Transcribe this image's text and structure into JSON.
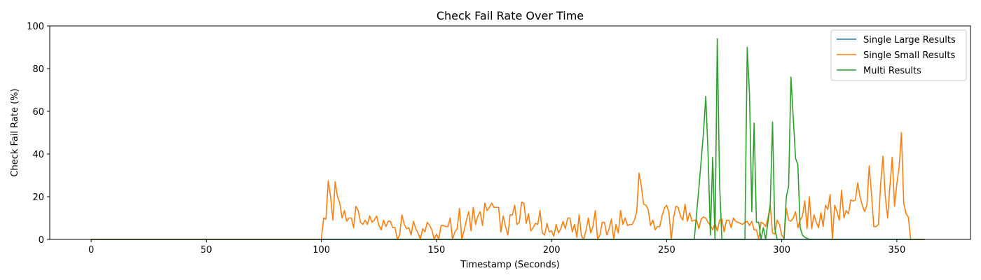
{
  "chart_data": {
    "type": "line",
    "title": "Check Fail Rate Over Time",
    "xlabel": "Timestamp (Seconds)",
    "ylabel": "Check Fail Rate (%)",
    "xlim": [
      -18,
      382
    ],
    "ylim": [
      0,
      100
    ],
    "xticks": [
      0,
      50,
      100,
      150,
      200,
      250,
      300,
      350
    ],
    "yticks": [
      0,
      20,
      40,
      60,
      80,
      100
    ],
    "grid": false,
    "legend_position": "top-right",
    "series": [
      {
        "name": "Single Large Results",
        "color": "#1f77b4",
        "points": [
          [
            0,
            0
          ],
          [
            362,
            0
          ]
        ]
      },
      {
        "name": "Single Small Results",
        "color": "#ff7f0e",
        "points": [
          [
            0,
            0
          ],
          [
            100,
            0
          ],
          [
            101,
            10
          ],
          [
            102,
            9.5
          ],
          [
            103,
            27.5
          ],
          [
            104,
            20
          ],
          [
            105,
            9
          ],
          [
            106,
            27
          ],
          [
            107,
            20
          ],
          [
            108,
            17
          ],
          [
            109,
            10
          ],
          [
            110,
            13.5
          ],
          [
            111,
            8.5
          ],
          [
            112,
            10
          ],
          [
            113,
            10
          ],
          [
            114,
            5.5
          ],
          [
            115,
            15.5
          ],
          [
            116,
            13.5
          ],
          [
            117,
            8
          ],
          [
            118,
            7
          ],
          [
            119,
            9
          ],
          [
            120,
            7
          ],
          [
            121,
            11
          ],
          [
            122,
            8
          ],
          [
            123,
            9
          ],
          [
            124,
            11
          ],
          [
            125,
            6.5
          ],
          [
            126,
            4.5
          ],
          [
            127,
            9
          ],
          [
            128,
            6
          ],
          [
            129,
            8.5
          ],
          [
            130,
            8.5
          ],
          [
            131,
            5.5
          ],
          [
            132,
            5.5
          ],
          [
            133,
            0
          ],
          [
            134,
            2
          ],
          [
            135,
            11.5
          ],
          [
            136,
            7
          ],
          [
            137,
            5
          ],
          [
            138,
            5.5
          ],
          [
            139,
            2
          ],
          [
            140,
            8.5
          ],
          [
            141,
            5
          ],
          [
            142,
            3
          ],
          [
            143,
            0
          ],
          [
            144,
            5
          ],
          [
            145,
            3.5
          ],
          [
            146,
            8
          ],
          [
            147,
            6.5
          ],
          [
            148,
            4.5
          ],
          [
            149,
            0
          ],
          [
            150,
            2.5
          ],
          [
            151,
            0
          ],
          [
            152,
            6.5
          ],
          [
            153,
            6.5
          ],
          [
            154,
            6
          ],
          [
            155,
            6
          ],
          [
            156,
            10
          ],
          [
            157,
            0
          ],
          [
            158,
            3.5
          ],
          [
            159,
            5
          ],
          [
            160,
            14.5
          ],
          [
            161,
            0
          ],
          [
            162,
            4
          ],
          [
            163,
            9
          ],
          [
            164,
            13
          ],
          [
            165,
            4
          ],
          [
            166,
            15
          ],
          [
            167,
            7
          ],
          [
            168,
            11
          ],
          [
            169,
            13
          ],
          [
            170,
            6.5
          ],
          [
            171,
            17
          ],
          [
            172,
            13.5
          ],
          [
            173,
            15
          ],
          [
            174,
            17
          ],
          [
            175,
            15
          ],
          [
            176,
            15
          ],
          [
            177,
            15
          ],
          [
            178,
            3.5
          ],
          [
            179,
            11
          ],
          [
            180,
            6
          ],
          [
            181,
            2
          ],
          [
            182,
            11.5
          ],
          [
            183,
            11.5
          ],
          [
            184,
            16
          ],
          [
            185,
            7
          ],
          [
            186,
            8
          ],
          [
            187,
            17.5
          ],
          [
            188,
            17
          ],
          [
            189,
            7.5
          ],
          [
            190,
            12
          ],
          [
            191,
            4
          ],
          [
            192,
            5.5
          ],
          [
            193,
            7.5
          ],
          [
            194,
            7
          ],
          [
            195,
            13.5
          ],
          [
            196,
            3
          ],
          [
            197,
            2
          ],
          [
            198,
            7.5
          ],
          [
            199,
            3.5
          ],
          [
            200,
            4
          ],
          [
            201,
            1.5
          ],
          [
            202,
            7
          ],
          [
            203,
            3
          ],
          [
            204,
            5
          ],
          [
            205,
            8.5
          ],
          [
            206,
            5
          ],
          [
            207,
            10
          ],
          [
            208,
            10
          ],
          [
            209,
            3.5
          ],
          [
            210,
            7
          ],
          [
            211,
            1
          ],
          [
            212,
            11.5
          ],
          [
            213,
            1.5
          ],
          [
            214,
            0
          ],
          [
            215,
            4.5
          ],
          [
            216,
            10
          ],
          [
            217,
            3
          ],
          [
            218,
            6
          ],
          [
            219,
            13.5
          ],
          [
            220,
            0
          ],
          [
            221,
            2
          ],
          [
            222,
            8
          ],
          [
            223,
            8
          ],
          [
            224,
            2
          ],
          [
            225,
            5
          ],
          [
            226,
            9.5
          ],
          [
            227,
            0
          ],
          [
            228,
            7
          ],
          [
            229,
            3
          ],
          [
            230,
            13.5
          ],
          [
            231,
            7
          ],
          [
            232,
            10
          ],
          [
            233,
            6.5
          ],
          [
            234,
            7
          ],
          [
            235,
            7
          ],
          [
            236,
            9
          ],
          [
            237,
            13
          ],
          [
            238,
            31
          ],
          [
            239,
            25
          ],
          [
            240,
            16.5
          ],
          [
            241,
            16
          ],
          [
            242,
            14
          ],
          [
            243,
            6.5
          ],
          [
            244,
            9
          ],
          [
            245,
            4.5
          ],
          [
            246,
            6
          ],
          [
            247,
            6
          ],
          [
            248,
            11
          ],
          [
            249,
            14.5
          ],
          [
            250,
            16
          ],
          [
            251,
            12.5
          ],
          [
            252,
            0
          ],
          [
            253,
            10
          ],
          [
            254,
            15.5
          ],
          [
            255,
            15
          ],
          [
            256,
            11
          ],
          [
            257,
            9
          ],
          [
            258,
            16.5
          ],
          [
            259,
            8.5
          ],
          [
            260,
            12.5
          ],
          [
            261,
            8.5
          ],
          [
            262,
            9
          ],
          [
            263,
            9
          ],
          [
            264,
            5
          ],
          [
            265,
            9.5
          ],
          [
            266,
            10.5
          ],
          [
            267,
            10
          ],
          [
            268,
            8
          ],
          [
            269,
            6.5
          ],
          [
            270,
            4.5
          ],
          [
            271,
            7.5
          ],
          [
            272,
            4
          ],
          [
            273,
            9
          ],
          [
            274,
            9.5
          ],
          [
            275,
            3.5
          ],
          [
            276,
            9
          ],
          [
            277,
            9
          ],
          [
            278,
            5.5
          ],
          [
            279,
            10
          ],
          [
            280,
            8.5
          ],
          [
            281,
            8
          ],
          [
            282,
            7.5
          ],
          [
            283,
            7
          ],
          [
            284,
            8
          ],
          [
            285,
            8.5
          ],
          [
            286,
            6.5
          ],
          [
            287,
            8.5
          ],
          [
            288,
            4.5
          ],
          [
            289,
            4.5
          ],
          [
            290,
            0
          ],
          [
            291,
            8
          ],
          [
            292,
            7.5
          ],
          [
            293,
            6
          ],
          [
            294,
            10
          ],
          [
            295,
            16
          ],
          [
            296,
            3
          ],
          [
            297,
            2.5
          ],
          [
            298,
            9
          ],
          [
            299,
            7
          ],
          [
            300,
            2
          ],
          [
            301,
            0.5
          ],
          [
            302,
            14.5
          ],
          [
            303,
            9
          ],
          [
            304,
            8.5
          ],
          [
            305,
            10
          ],
          [
            306,
            13
          ],
          [
            307,
            5.5
          ],
          [
            308,
            9
          ],
          [
            309,
            11
          ],
          [
            310,
            18
          ],
          [
            311,
            5
          ],
          [
            312,
            20
          ],
          [
            313,
            5
          ],
          [
            314,
            11.5
          ],
          [
            315,
            8
          ],
          [
            316,
            5.5
          ],
          [
            317,
            12.5
          ],
          [
            318,
            6
          ],
          [
            319,
            16
          ],
          [
            320,
            14
          ],
          [
            321,
            21
          ],
          [
            322,
            0
          ],
          [
            323,
            16
          ],
          [
            324,
            13
          ],
          [
            325,
            9
          ],
          [
            326,
            23
          ],
          [
            327,
            10
          ],
          [
            328,
            13.5
          ],
          [
            329,
            12
          ],
          [
            330,
            18.5
          ],
          [
            331,
            18
          ],
          [
            332,
            18.5
          ],
          [
            333,
            26.5
          ],
          [
            334,
            20
          ],
          [
            335,
            16
          ],
          [
            336,
            13
          ],
          [
            337,
            16
          ],
          [
            338,
            34.5
          ],
          [
            339,
            21
          ],
          [
            340,
            6
          ],
          [
            341,
            6
          ],
          [
            342,
            7
          ],
          [
            343,
            26.5
          ],
          [
            344,
            39
          ],
          [
            345,
            20
          ],
          [
            346,
            10
          ],
          [
            347,
            25
          ],
          [
            348,
            38.5
          ],
          [
            349,
            15.5
          ],
          [
            350,
            26
          ],
          [
            351,
            34
          ],
          [
            352,
            50
          ],
          [
            353,
            17
          ],
          [
            354,
            12
          ],
          [
            355,
            10.5
          ],
          [
            356,
            0
          ],
          [
            362,
            0
          ]
        ]
      },
      {
        "name": "Multi Results",
        "color": "#2ca02c",
        "points": [
          [
            0,
            0
          ],
          [
            262,
            0
          ],
          [
            264,
            24
          ],
          [
            266,
            50
          ],
          [
            267,
            67
          ],
          [
            268,
            40
          ],
          [
            269,
            2
          ],
          [
            270,
            38.5
          ],
          [
            271,
            0
          ],
          [
            272,
            94
          ],
          [
            273,
            26
          ],
          [
            274,
            0
          ],
          [
            284,
            0
          ],
          [
            285,
            90
          ],
          [
            286,
            68
          ],
          [
            287,
            13
          ],
          [
            288,
            54.5
          ],
          [
            289,
            8
          ],
          [
            290,
            8
          ],
          [
            291,
            0
          ],
          [
            292,
            5.5
          ],
          [
            293,
            0
          ],
          [
            295,
            16
          ],
          [
            296,
            55
          ],
          [
            297,
            5
          ],
          [
            298,
            0
          ],
          [
            301,
            0
          ],
          [
            302,
            20
          ],
          [
            303,
            25
          ],
          [
            304,
            76
          ],
          [
            305,
            57
          ],
          [
            306,
            38
          ],
          [
            307,
            35
          ],
          [
            308,
            5.5
          ],
          [
            309,
            2
          ],
          [
            310,
            1
          ],
          [
            311,
            0.5
          ],
          [
            312,
            0
          ],
          [
            362,
            0
          ]
        ]
      }
    ]
  }
}
